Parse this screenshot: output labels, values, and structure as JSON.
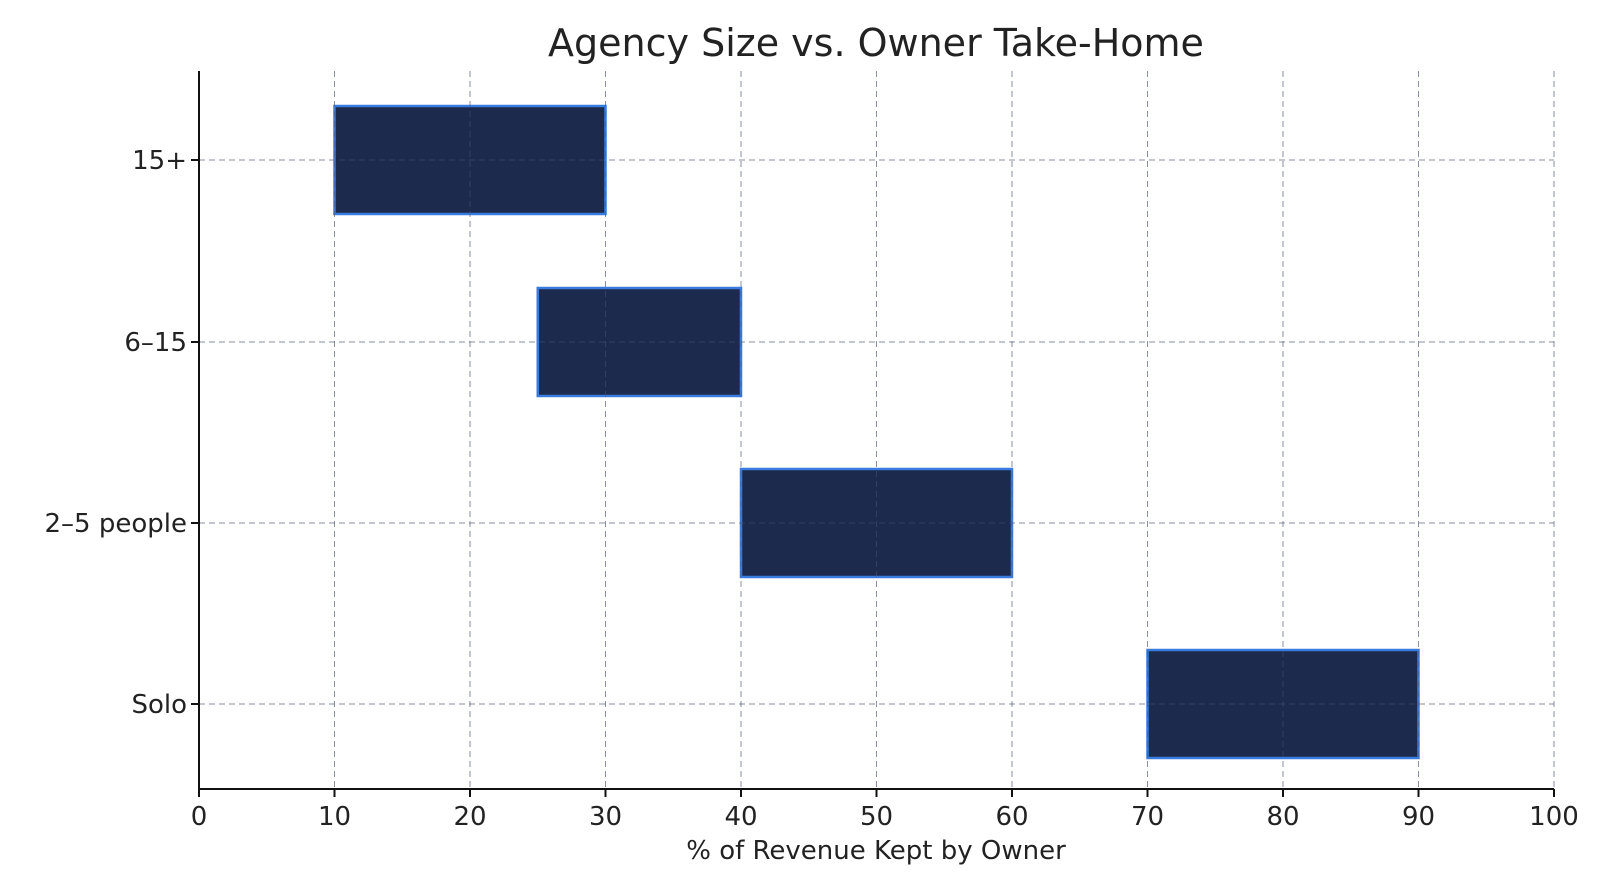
{
  "chart_data": {
    "type": "bar",
    "orientation": "horizontal",
    "title": "Agency Size vs. Owner Take-Home",
    "xlabel": "% of Revenue Kept by Owner",
    "ylabel": "",
    "xlim": [
      0,
      100
    ],
    "xticks": [
      0,
      10,
      20,
      30,
      40,
      50,
      60,
      70,
      80,
      90,
      100
    ],
    "categories": [
      "Solo",
      "2–5 people",
      "6–15",
      "15+"
    ],
    "ranges": [
      {
        "category": "Solo",
        "start": 70,
        "end": 90
      },
      {
        "category": "2–5 people",
        "start": 40,
        "end": 60
      },
      {
        "category": "6–15",
        "start": 25,
        "end": 40
      },
      {
        "category": "15+",
        "start": 10,
        "end": 30
      }
    ],
    "grid": true,
    "colors": {
      "bar_fill": "#1c2a4d",
      "bar_edge": "#3a7be0",
      "grid": "#bdbdbd",
      "text": "#222222"
    }
  }
}
